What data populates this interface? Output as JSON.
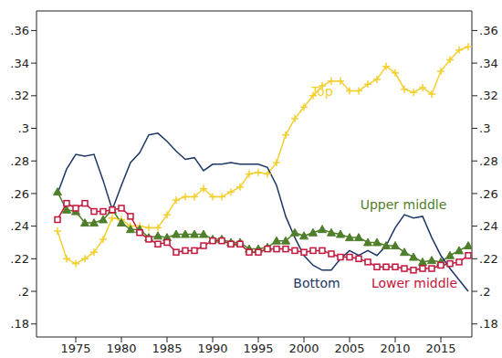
{
  "chart_data": {
    "type": "line",
    "x": [
      1973,
      1974,
      1975,
      1976,
      1977,
      1978,
      1979,
      1980,
      1981,
      1982,
      1983,
      1984,
      1985,
      1986,
      1987,
      1988,
      1989,
      1990,
      1991,
      1992,
      1993,
      1994,
      1995,
      1996,
      1997,
      1998,
      1999,
      2000,
      2001,
      2002,
      2003,
      2004,
      2005,
      2006,
      2007,
      2008,
      2009,
      2010,
      2011,
      2012,
      2013,
      2014,
      2015,
      2016,
      2017,
      2018
    ],
    "series": [
      {
        "name": "Top",
        "color": "#f2cf2f",
        "marker": "plus",
        "values": [
          0.237,
          0.22,
          0.217,
          0.22,
          0.224,
          0.232,
          0.245,
          0.244,
          0.24,
          0.24,
          0.239,
          0.239,
          0.247,
          0.256,
          0.258,
          0.258,
          0.263,
          0.258,
          0.258,
          0.261,
          0.264,
          0.272,
          0.273,
          0.272,
          0.279,
          0.296,
          0.306,
          0.313,
          0.32,
          0.326,
          0.329,
          0.329,
          0.323,
          0.323,
          0.327,
          0.33,
          0.338,
          0.334,
          0.324,
          0.322,
          0.325,
          0.321,
          0.335,
          0.342,
          0.348,
          0.35
        ]
      },
      {
        "name": "Upper middle",
        "color": "#4f7f2a",
        "marker": "triangle",
        "values": [
          0.261,
          0.25,
          0.249,
          0.242,
          0.242,
          0.244,
          0.25,
          0.242,
          0.238,
          0.238,
          0.233,
          0.234,
          0.233,
          0.235,
          0.235,
          0.235,
          0.235,
          0.232,
          0.232,
          0.23,
          0.23,
          0.226,
          0.226,
          0.227,
          0.231,
          0.231,
          0.236,
          0.234,
          0.236,
          0.238,
          0.236,
          0.235,
          0.233,
          0.233,
          0.23,
          0.23,
          0.228,
          0.228,
          0.224,
          0.221,
          0.218,
          0.219,
          0.218,
          0.222,
          0.225,
          0.228
        ]
      },
      {
        "name": "Bottom",
        "color": "#1c3766",
        "marker": "none",
        "values": [
          0.26,
          0.275,
          0.284,
          0.283,
          0.284,
          0.268,
          0.25,
          0.265,
          0.279,
          0.285,
          0.296,
          0.297,
          0.292,
          0.286,
          0.281,
          0.282,
          0.274,
          0.278,
          0.278,
          0.279,
          0.278,
          0.278,
          0.278,
          0.276,
          0.265,
          0.246,
          0.233,
          0.222,
          0.216,
          0.213,
          0.213,
          0.22,
          0.225,
          0.222,
          0.225,
          0.222,
          0.228,
          0.239,
          0.247,
          0.245,
          0.246,
          0.233,
          0.222,
          0.214,
          0.207,
          0.2
        ]
      },
      {
        "name": "Lower middle",
        "color": "#c8133a",
        "marker": "square",
        "values": [
          0.244,
          0.254,
          0.251,
          0.254,
          0.249,
          0.249,
          0.25,
          0.251,
          0.246,
          0.236,
          0.232,
          0.229,
          0.23,
          0.224,
          0.225,
          0.225,
          0.228,
          0.231,
          0.231,
          0.229,
          0.229,
          0.224,
          0.224,
          0.226,
          0.226,
          0.226,
          0.225,
          0.224,
          0.225,
          0.225,
          0.223,
          0.221,
          0.221,
          0.22,
          0.218,
          0.215,
          0.215,
          0.215,
          0.214,
          0.213,
          0.214,
          0.214,
          0.216,
          0.217,
          0.218,
          0.222
        ]
      }
    ],
    "xlim": [
      1970.7,
      2018.4
    ],
    "xticks": [
      1975,
      1980,
      1985,
      1990,
      1995,
      2000,
      2005,
      2010,
      2015
    ],
    "ylim": [
      0.172,
      0.372
    ],
    "yticks": [
      {
        "value": 0.18,
        "label": ".18"
      },
      {
        "value": 0.2,
        "label": ".2"
      },
      {
        "value": 0.22,
        "label": ".22"
      },
      {
        "value": 0.24,
        "label": ".24"
      },
      {
        "value": 0.26,
        "label": ".26"
      },
      {
        "value": 0.28,
        "label": ".28"
      },
      {
        "value": 0.3,
        "label": ".3"
      },
      {
        "value": 0.32,
        "label": ".32"
      },
      {
        "value": 0.34,
        "label": ".34"
      },
      {
        "value": 0.36,
        "label": ".36"
      }
    ],
    "y2lim": [
      0.172,
      0.372
    ],
    "y2ticks": [
      {
        "value": 0.18,
        "label": ".18"
      },
      {
        "value": 0.2,
        "label": ".2"
      },
      {
        "value": 0.22,
        "label": ".22"
      },
      {
        "value": 0.24,
        "label": ".24"
      },
      {
        "value": 0.26,
        "label": ".26"
      },
      {
        "value": 0.28,
        "label": ".28"
      },
      {
        "value": 0.3,
        "label": ".3"
      },
      {
        "value": 0.32,
        "label": ".32"
      },
      {
        "value": 0.34,
        "label": ".34"
      },
      {
        "value": 0.36,
        "label": ".36"
      }
    ],
    "grid": false,
    "annotations": [
      {
        "text": "Top",
        "x": 2002,
        "y": 0.3226,
        "color": "#f2cf2f"
      },
      {
        "text": "Upper middle",
        "x": 2010.9,
        "y": 0.2533,
        "color": "#4f7f2a"
      },
      {
        "text": "Bottom",
        "x": 2001.4,
        "y": 0.2053,
        "color": "#1c3766"
      },
      {
        "text": "Lower middle",
        "x": 2012.1,
        "y": 0.2053,
        "color": "#c8133a"
      }
    ]
  }
}
